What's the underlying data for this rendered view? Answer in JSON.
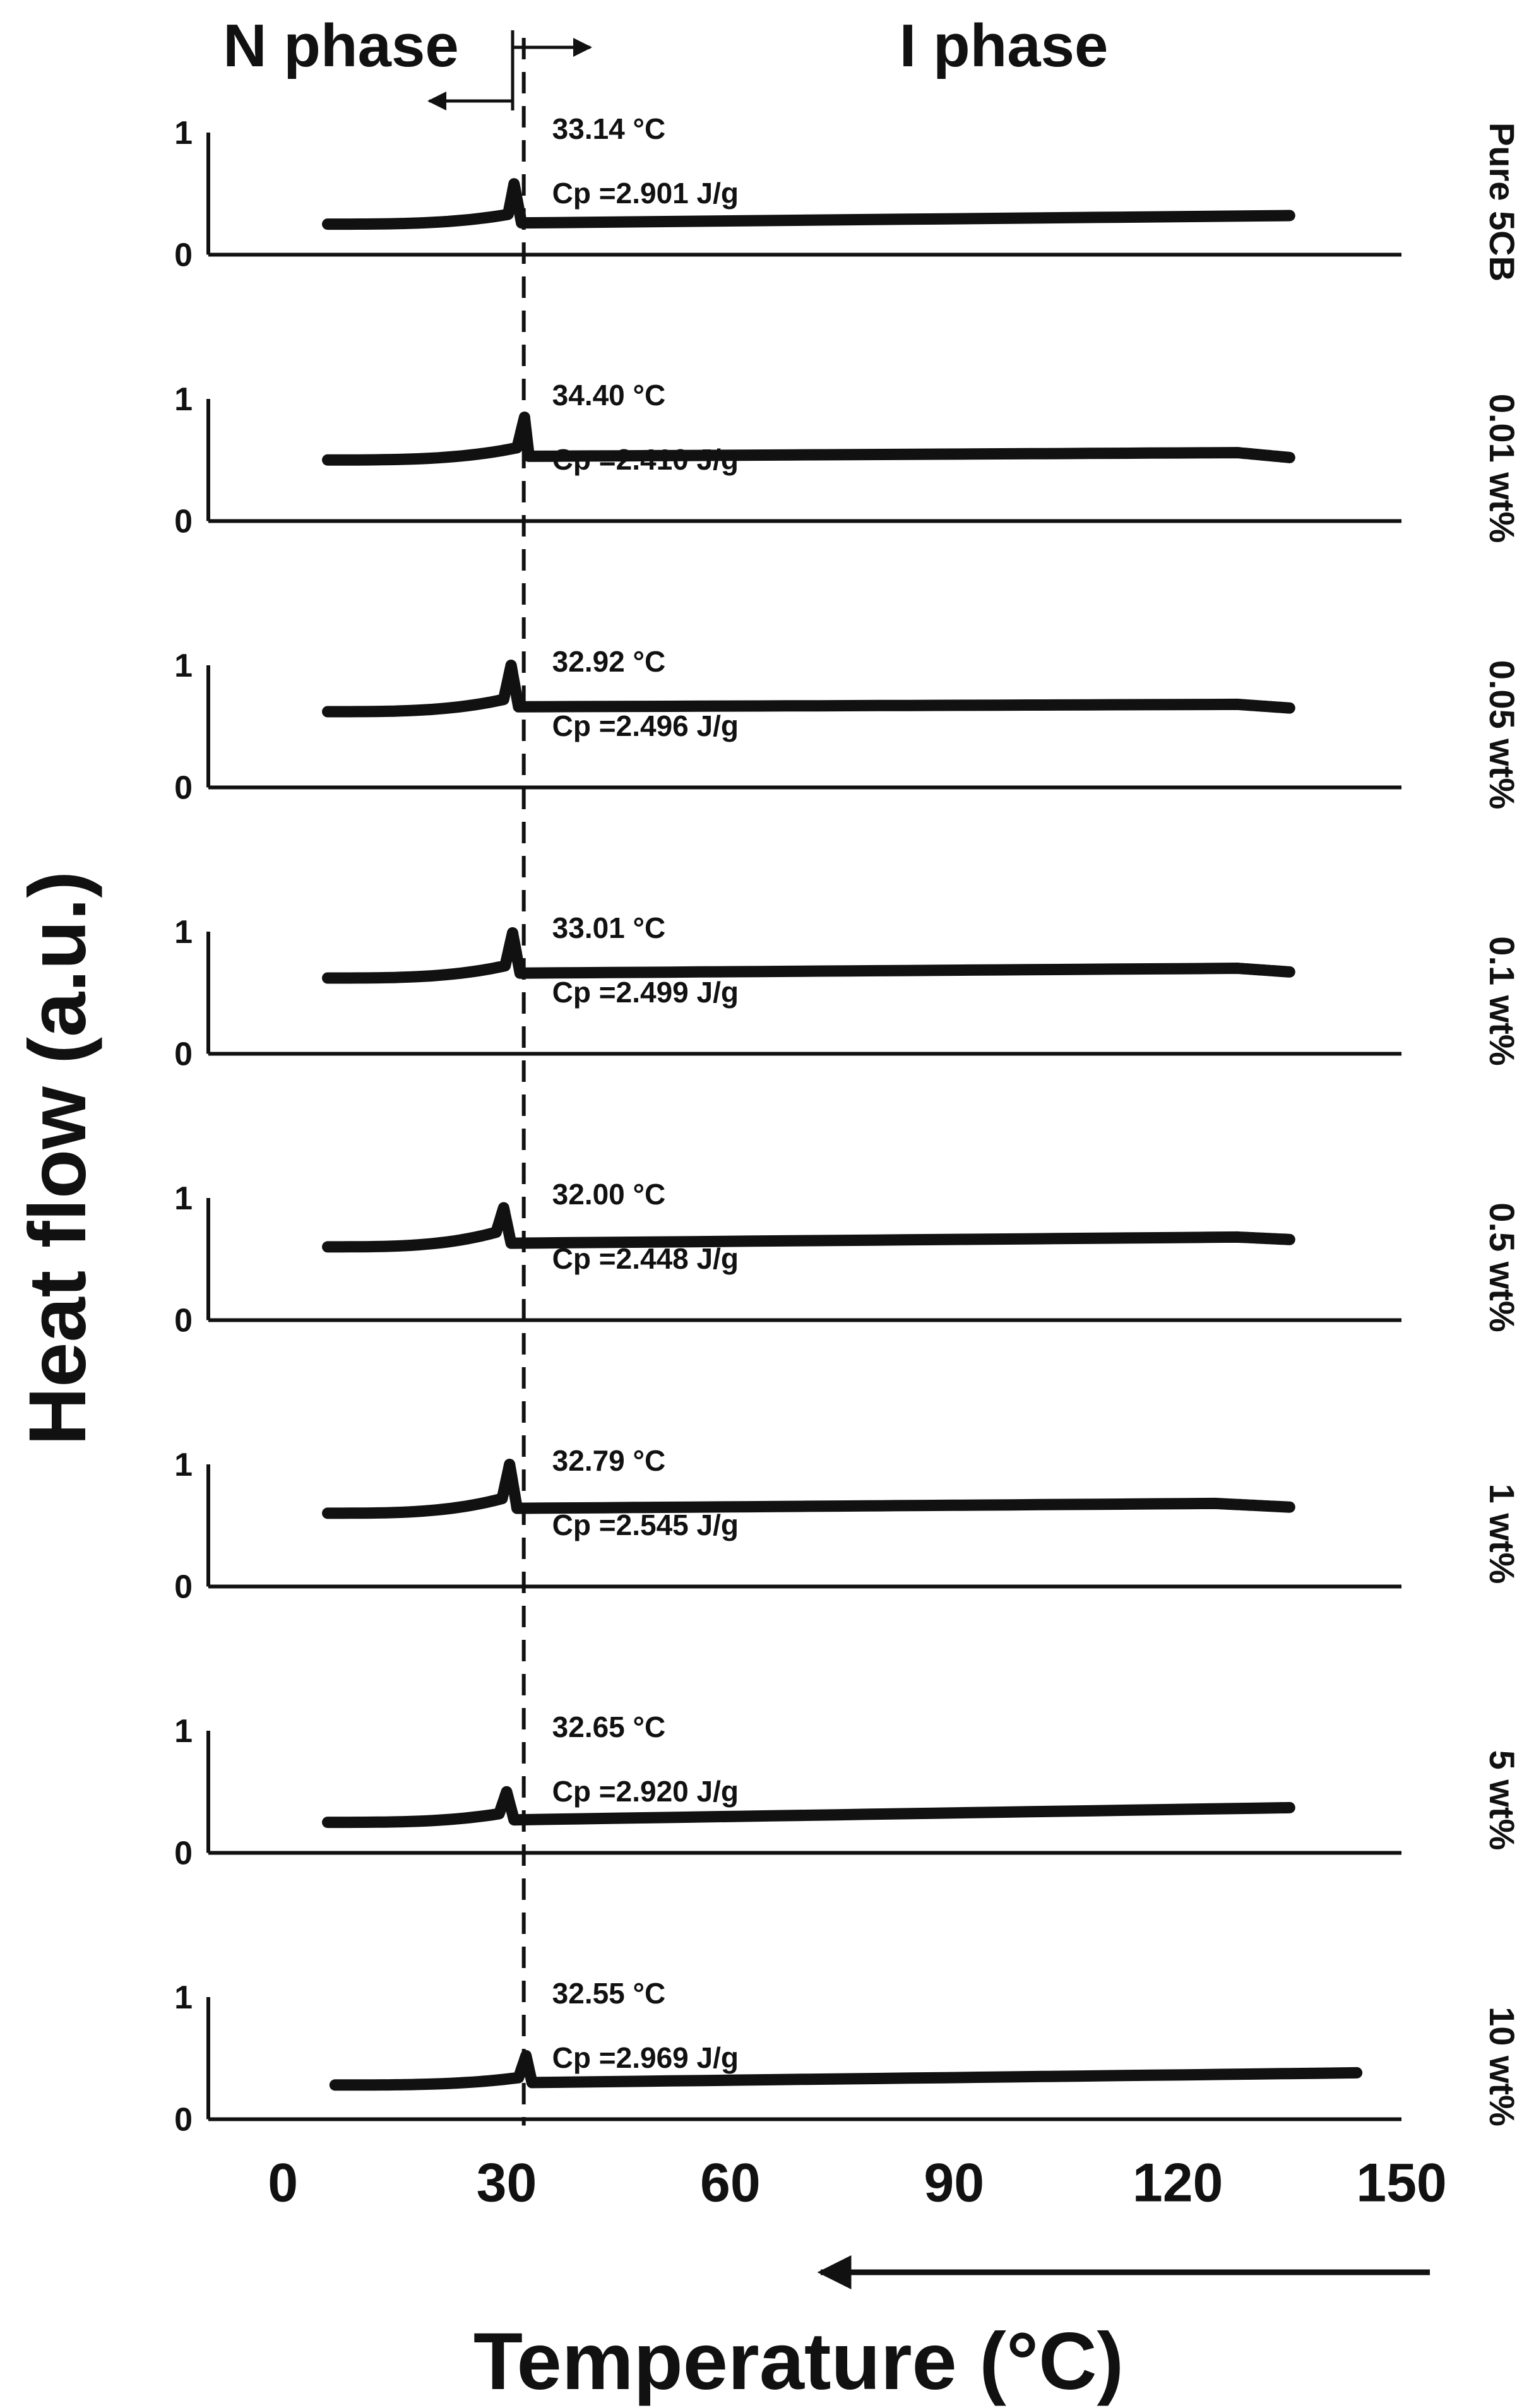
{
  "chart_data": {
    "type": "line",
    "layout": "stacked panels sharing x-axis",
    "phase_labels": {
      "left": "N phase",
      "right": "I phase"
    },
    "xlabel": "Temperature (°C)",
    "ylabel": "Heat flow (a.u.)",
    "xlim": [
      -10,
      150
    ],
    "x_ticks": [
      "0",
      "30",
      "60",
      "90",
      "120",
      "150"
    ],
    "x_tick_values": [
      0,
      30,
      60,
      90,
      120,
      150
    ],
    "y_ticks": [
      "0",
      "1"
    ],
    "y_tick_values": [
      0,
      1
    ],
    "ylim": [
      0,
      1
    ],
    "dashed_reference_line_x": 32.3,
    "scan_direction": "cooling (arrow pointing toward lower temperature)",
    "grid": false,
    "series": [
      {
        "name": "Pure 5CB",
        "transition_label": "33.14 °C",
        "cp_label": "Cp =2.901 J/g",
        "x": [
          6,
          30.2,
          31.0,
          32.0,
          135
        ],
        "y": [
          0.25,
          0.33,
          0.58,
          0.26,
          0.32
        ]
      },
      {
        "name": "0.01 wt%",
        "transition_label": "34.40 °C",
        "cp_label": "Cp =2.410 J/g",
        "x": [
          6,
          31.4,
          32.4,
          33.0,
          128,
          135
        ],
        "y": [
          0.5,
          0.6,
          0.85,
          0.53,
          0.56,
          0.52
        ]
      },
      {
        "name": "0.05 wt%",
        "transition_label": "32.92 °C",
        "cp_label": "Cp =2.496 J/g",
        "x": [
          6,
          29.6,
          30.6,
          31.6,
          128,
          135
        ],
        "y": [
          0.62,
          0.72,
          1.0,
          0.66,
          0.68,
          0.65
        ]
      },
      {
        "name": "0.1 wt%",
        "transition_label": "33.01 °C",
        "cp_label": "Cp =2.499 J/g",
        "x": [
          6,
          29.8,
          30.8,
          31.8,
          128,
          135
        ],
        "y": [
          0.62,
          0.72,
          0.99,
          0.66,
          0.7,
          0.67
        ]
      },
      {
        "name": "0.5 wt%",
        "transition_label": "32.00 °C",
        "cp_label": "Cp =2.448 J/g",
        "x": [
          6,
          28.6,
          29.6,
          30.6,
          128,
          135
        ],
        "y": [
          0.6,
          0.72,
          0.92,
          0.63,
          0.68,
          0.66
        ]
      },
      {
        "name": "1 wt%",
        "transition_label": "32.79 °C",
        "cp_label": "Cp =2.545 J/g",
        "x": [
          6,
          29.4,
          30.4,
          31.4,
          125,
          135
        ],
        "y": [
          0.6,
          0.72,
          1.0,
          0.64,
          0.68,
          0.65
        ]
      },
      {
        "name": "5 wt%",
        "transition_label": "32.65 °C",
        "cp_label": "Cp =2.920 J/g",
        "x": [
          6,
          29.0,
          30.0,
          31.0,
          135
        ],
        "y": [
          0.25,
          0.32,
          0.5,
          0.27,
          0.37
        ]
      },
      {
        "name": "10 wt%",
        "transition_label": "32.55 °C",
        "cp_label": "Cp =2.969 J/g",
        "x": [
          7,
          31.6,
          32.6,
          33.4,
          144
        ],
        "y": [
          0.28,
          0.34,
          0.52,
          0.3,
          0.38
        ]
      }
    ]
  }
}
